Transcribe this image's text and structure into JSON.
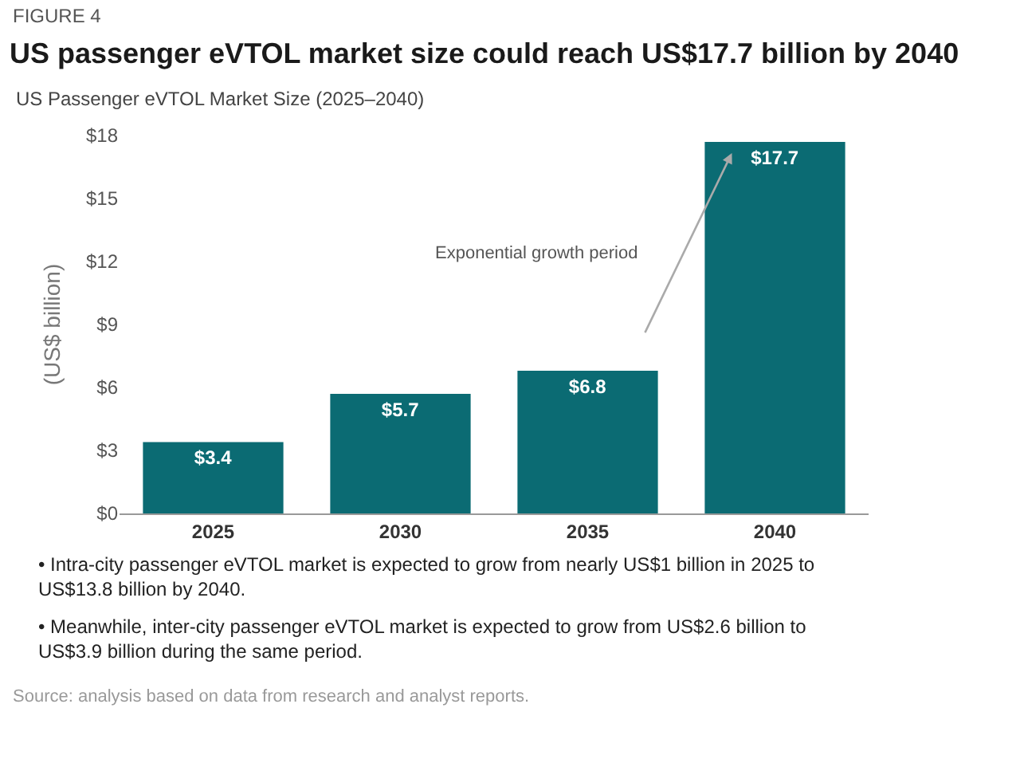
{
  "chart_data": {
    "type": "bar",
    "title": "US passenger eVTOL market size could reach US$17.7 billion by 2040",
    "subtitle": "US Passenger eVTOL Market Size (2025–2040)",
    "ylabel": "(US$ billion)",
    "categories": [
      "2025",
      "2030",
      "2035",
      "2040"
    ],
    "values": [
      3.4,
      5.7,
      6.8,
      17.7
    ],
    "value_labels": [
      "$3.4",
      "$5.7",
      "$6.8",
      "$17.7"
    ],
    "color": "#0b6b73",
    "ylim": [
      0,
      18
    ],
    "yticks": [
      {
        "value": 0,
        "label": "$0"
      },
      {
        "value": 3,
        "label": "$3"
      },
      {
        "value": 6,
        "label": "$6"
      },
      {
        "value": 9,
        "label": "$9"
      },
      {
        "value": 12,
        "label": "$12"
      },
      {
        "value": 15,
        "label": "$15"
      },
      {
        "value": 18,
        "label": "$18"
      }
    ],
    "grid": false,
    "annotations": [
      {
        "text": "FIGURE 4"
      },
      "Exponential growth period",
      {
        "text": "• Intra-city passenger eVTOL market is expected to grow from nearly US$1 billion in 2025 to US$13.8 billion by 2040."
      },
      {
        "text": "• Meanwhile, inter-city passenger eVTOL market is expected to grow from US$2.6 billion to US$3.9 billion during the same period."
      },
      {
        "text": "Source: analysis based on data from research and analyst reports."
      }
    ]
  }
}
